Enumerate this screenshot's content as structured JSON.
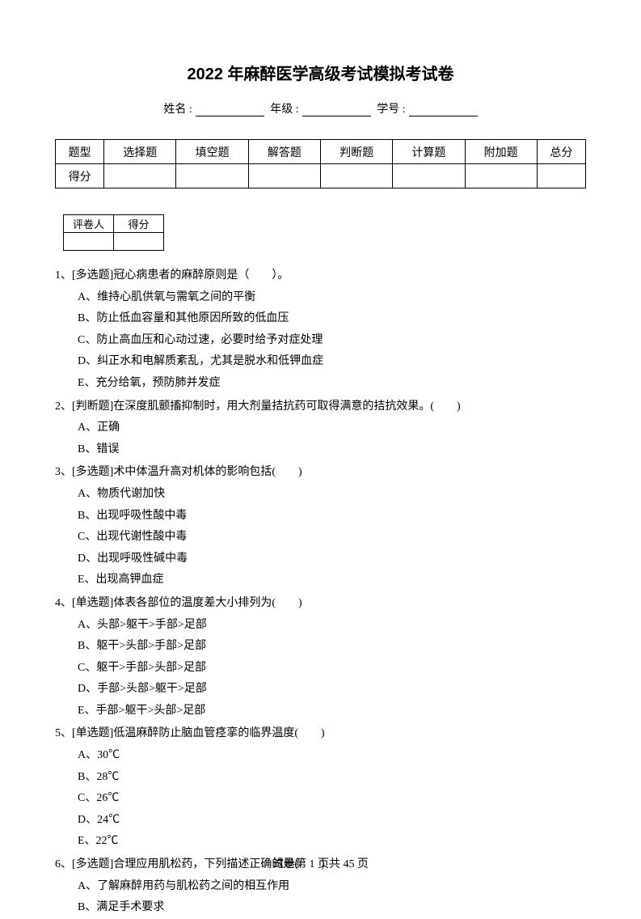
{
  "title": "2022 年麻醉医学高级考试模拟考试卷",
  "info": {
    "name_label": "姓名 :",
    "grade_label": "年级 :",
    "id_label": "学号 :"
  },
  "score_table": {
    "headers": [
      "题型",
      "选择题",
      "填空题",
      "解答题",
      "判断题",
      "计算题",
      "附加题",
      "总分"
    ],
    "row_label": "得分"
  },
  "grader_table": {
    "headers": [
      "评卷人",
      "得分"
    ]
  },
  "questions": [
    {
      "num": "1、",
      "tag": "[多选题]",
      "stem": "冠心病患者的麻醉原则是（　　）。",
      "options": [
        "A、维持心肌供氧与需氧之间的平衡",
        "B、防止低血容量和其他原因所致的低血压",
        "C、防止高血压和心动过速，必要时给予对症处理",
        "D、纠正水和电解质紊乱，尤其是脱水和低钾血症",
        "E、充分给氧，预防肺并发症"
      ]
    },
    {
      "num": "2、",
      "tag": "[判断题]",
      "stem": "在深度肌颤搐抑制时，用大剂量拮抗药可取得满意的拮抗效果。(　　)",
      "options": [
        "A、正确",
        "B、错误"
      ]
    },
    {
      "num": "3、",
      "tag": "[多选题]",
      "stem": "术中体温升高对机体的影响包括(　　)",
      "options": [
        "A、物质代谢加快",
        "B、出现呼吸性酸中毒",
        "C、出现代谢性酸中毒",
        "D、出现呼吸性碱中毒",
        "E、出现高钾血症"
      ]
    },
    {
      "num": "4、",
      "tag": "[单选题]",
      "stem": "体表各部位的温度差大小排列为(　　)",
      "options": [
        "A、头部>躯干>手部>足部",
        "B、躯干>头部>手部>足部",
        "C、躯干>手部>头部>足部",
        "D、手部>头部>躯干>足部",
        "E、手部>躯干>头部>足部"
      ]
    },
    {
      "num": "5、",
      "tag": "[单选题]",
      "stem": "低温麻醉防止脑血管痉挛的临界温度(　　)",
      "options": [
        "A、30℃",
        "B、28℃",
        "C、26℃",
        "D、24℃",
        "E、22℃"
      ]
    },
    {
      "num": "6、",
      "tag": "[多选题]",
      "stem": "合理应用肌松药，下列描述正确的是(　　)",
      "options": [
        "A、了解麻醉用药与肌松药之间的相互作用",
        "B、满足手术要求"
      ]
    }
  ],
  "footer": "试卷第 1 页共 45 页"
}
